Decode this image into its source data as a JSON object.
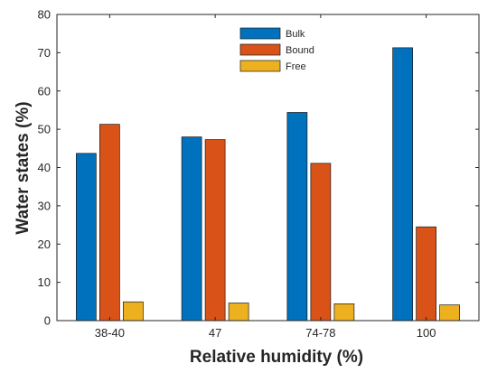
{
  "chart_data": {
    "type": "bar",
    "xlabel": "Relative humidity (%)",
    "ylabel": "Water states (%)",
    "categories": [
      "38-40",
      "47",
      "74-78",
      "100"
    ],
    "ylim": [
      0,
      80
    ],
    "yticks": [
      0,
      10,
      20,
      30,
      40,
      50,
      60,
      70,
      80
    ],
    "grid": false,
    "legend_position": "top-center",
    "series": [
      {
        "name": "Bulk",
        "color": "#0072BD",
        "values": [
          43.7,
          48.0,
          54.4,
          71.3
        ]
      },
      {
        "name": "Bound",
        "color": "#D95319",
        "values": [
          51.3,
          47.3,
          41.1,
          24.5
        ]
      },
      {
        "name": "Free",
        "color": "#EDB120",
        "values": [
          4.9,
          4.6,
          4.4,
          4.1
        ]
      }
    ]
  }
}
